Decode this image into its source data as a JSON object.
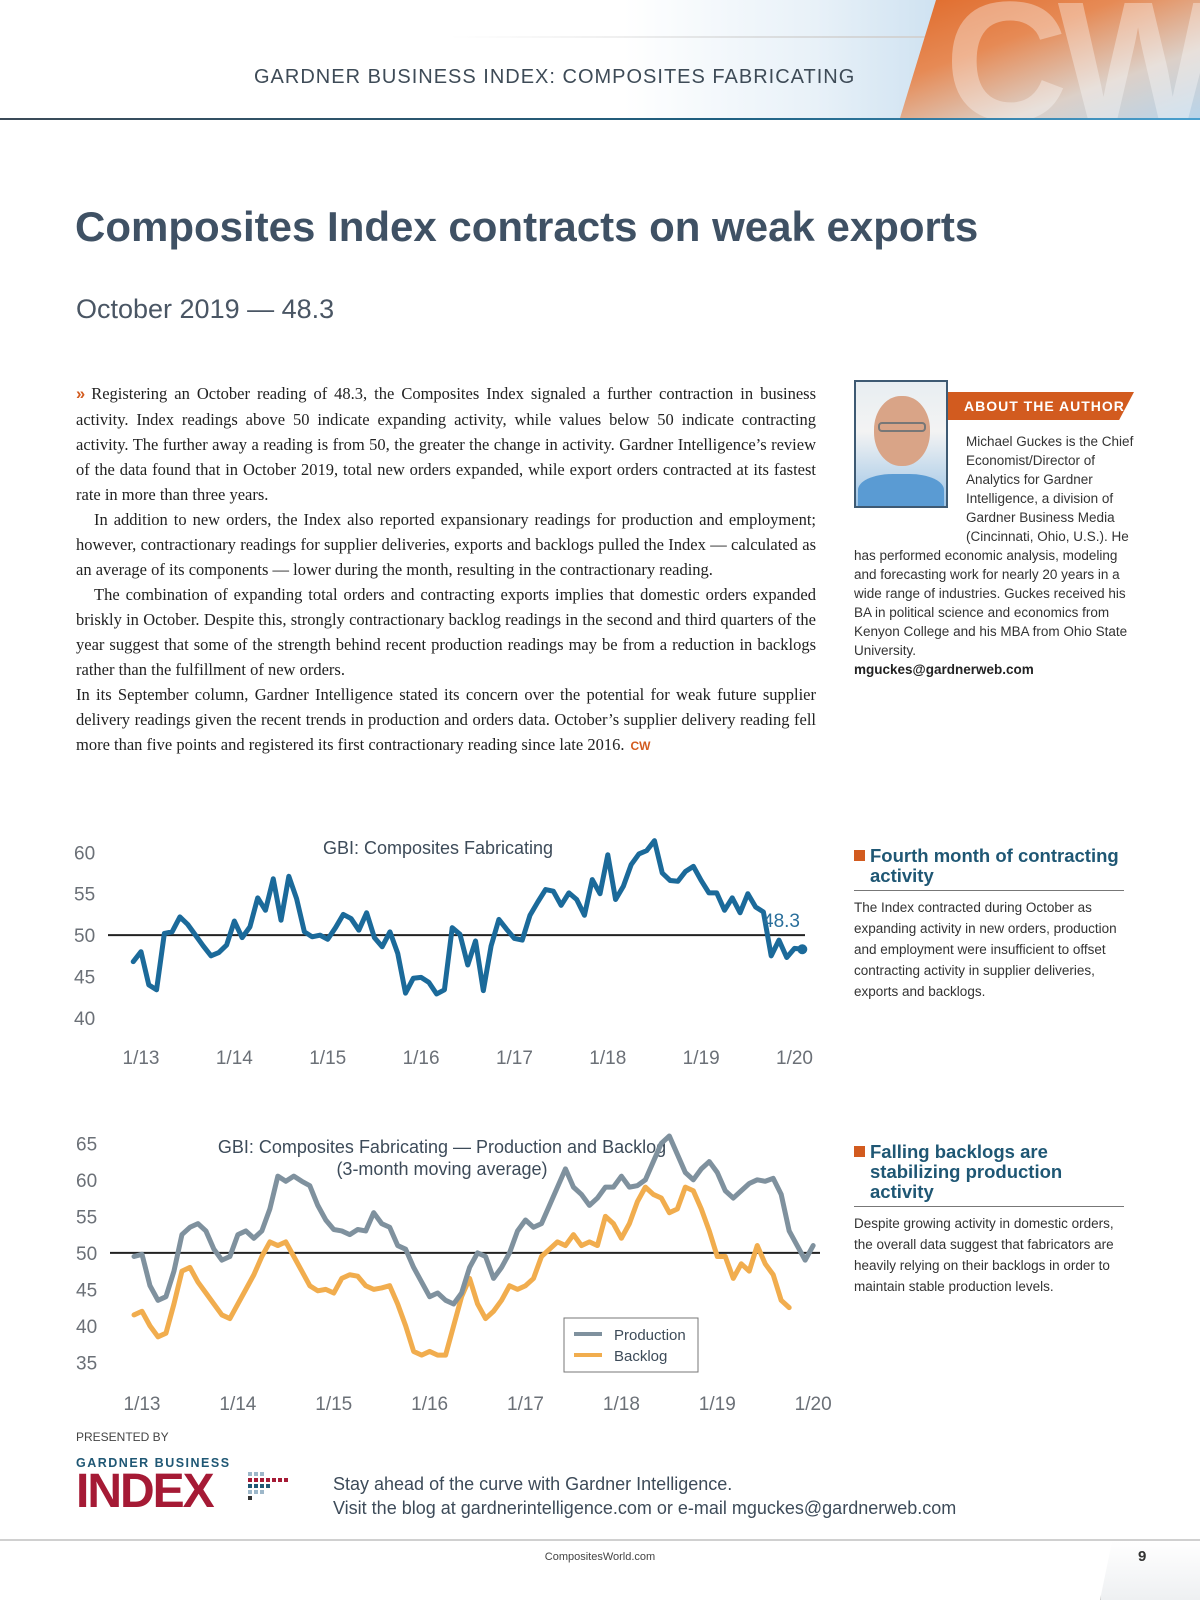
{
  "header": {
    "section_title": "GARDNER BUSINESS INDEX: COMPOSITES FABRICATING",
    "logo": "CW"
  },
  "article": {
    "title": "Composites Index contracts on weak exports",
    "subtitle": "October 2019 — 48.3",
    "lead_icon": "»",
    "paragraphs": [
      "Registering an October reading of 48.3, the Composites Index signaled a further contraction in business activity. Index readings above 50 indicate expanding activity, while values below 50 indicate contracting activity. The further away a reading is from 50, the greater the change in activity. Gardner Intelligence’s review of the data found that in October 2019, total new orders expanded, while export orders contracted at its fastest rate in more than three years.",
      "In addition to new orders, the Index also reported expansionary readings for production and employment; however, contractionary readings for supplier deliveries, exports and backlogs pulled the Index — calculated as an average of its components — lower during the month, resulting in the contractionary reading.",
      "The combination of expanding total orders and contracting exports implies that domestic orders expanded briskly in October. Despite this, strongly contractionary backlog readings in the second and third quarters of the year suggest that some of the strength behind recent produc­tion readings may be from a reduction in backlogs rather than the fulfillment of new orders.",
      "In its September column, Gardner Intelligence stated its concern over the potential for weak future supplier delivery readings given the recent trends in production and orders data. Octo­ber’s supplier delivery reading fell more than five points and registered its first contractionary reading since late 2016."
    ],
    "end_mark": "CW"
  },
  "author": {
    "tag": "ABOUT THE AUTHOR",
    "bio": "Michael Guckes is the Chief Economist/Director of Analytics for Gardner Intelligence, a division of Gardner Business Media (Cincinnati, Ohio, U.S.). He has performed economic analysis, modeling and forecasting work for nearly 20 years in a wide range of industries. Guckes received his BA in political science and economics from Kenyon College and his MBA from Ohio State University.",
    "email": "mguckes@gardnerweb.com"
  },
  "sidebars": [
    {
      "heading": "Fourth month of contracting activity",
      "body": "The Index contracted during October as expanding activity in new orders, produc­tion and employment were insufficient to offset contracting activity in supplier deliveries, exports and backlogs."
    },
    {
      "heading": "Falling backlogs are stabilizing production activity",
      "body": "Despite growing activity in domestic orders, the overall data suggest that fabricators are heavily relying on their backlogs in order to maintain stable production levels."
    }
  ],
  "colors": {
    "accent_orange": "#d25b1f",
    "index_line": "#1b6a9a",
    "production_line": "#7f919e",
    "backlog_line": "#f1ad4e",
    "reference_line": "#222222"
  },
  "chart_data": [
    {
      "type": "line",
      "title": "GBI: Composites Fabricating",
      "xlabel": "",
      "ylabel": "",
      "x_ticks": [
        "1/13",
        "1/14",
        "1/15",
        "1/16",
        "1/17",
        "1/18",
        "1/19",
        "1/20"
      ],
      "y_ticks": [
        40,
        45,
        50,
        55,
        60
      ],
      "ylim": [
        40,
        61
      ],
      "x_start": "12/12",
      "x_end": "10/19",
      "reference_line": 50,
      "annotation": "48.3",
      "grid": false,
      "series": [
        {
          "name": "Composites Index",
          "values": [
            46.8,
            48.0,
            44.0,
            43.4,
            50.2,
            50.4,
            52.2,
            51.3,
            50.0,
            48.7,
            47.5,
            47.9,
            48.8,
            51.7,
            49.7,
            51.0,
            54.5,
            53.0,
            56.8,
            51.8,
            57.1,
            54.4,
            50.4,
            49.8,
            50.0,
            49.5,
            50.9,
            52.5,
            52.0,
            50.6,
            52.7,
            49.7,
            48.6,
            50.4,
            47.8,
            43.0,
            44.8,
            44.9,
            44.3,
            42.9,
            43.4,
            50.9,
            50.1,
            46.4,
            49.3,
            43.3,
            48.7,
            51.9,
            50.7,
            49.6,
            49.4,
            52.4,
            54.0,
            55.5,
            55.3,
            53.6,
            55.1,
            54.3,
            52.4,
            56.7,
            55.0,
            59.7,
            54.3,
            55.9,
            58.5,
            59.8,
            60.2,
            61.4,
            57.5,
            56.6,
            56.5,
            57.7,
            58.3,
            56.6,
            55.1,
            55.1,
            53.0,
            54.5,
            52.7,
            55.0,
            53.4,
            52.8,
            47.5,
            49.4,
            47.3,
            48.4,
            48.3
          ]
        }
      ]
    },
    {
      "type": "line",
      "title": "GBI: Composites Fabricating — Production and Backlog",
      "subtitle": "(3-month moving average)",
      "xlabel": "",
      "ylabel": "",
      "x_ticks": [
        "1/13",
        "1/14",
        "1/15",
        "1/16",
        "1/17",
        "1/18",
        "1/19",
        "1/20"
      ],
      "y_ticks": [
        35,
        40,
        45,
        50,
        55,
        60,
        65
      ],
      "ylim": [
        33,
        66
      ],
      "x_start": "12/12",
      "x_end": "10/19",
      "reference_line": 50,
      "legend": "bottom-right",
      "grid": false,
      "series": [
        {
          "name": "Production",
          "values": [
            49.5,
            49.8,
            45.5,
            43.5,
            44.0,
            47.5,
            52.5,
            53.5,
            54.0,
            53.0,
            50.5,
            49.0,
            49.5,
            52.5,
            53.0,
            52.0,
            53.0,
            56.0,
            60.5,
            59.8,
            60.5,
            59.8,
            59.2,
            56.5,
            54.5,
            53.2,
            53.0,
            52.5,
            53.2,
            53.0,
            55.5,
            54.0,
            53.5,
            51.0,
            50.5,
            48.0,
            46.0,
            44.0,
            44.5,
            43.5,
            43.0,
            44.5,
            48.0,
            50.0,
            49.5,
            46.5,
            48.0,
            50.0,
            53.0,
            54.5,
            53.5,
            54.0,
            56.5,
            59.0,
            61.5,
            59.0,
            58.0,
            56.5,
            57.5,
            59.0,
            59.0,
            60.5,
            59.0,
            59.2,
            60.0,
            62.5,
            65.0,
            66.0,
            63.5,
            61.0,
            60.0,
            61.5,
            62.5,
            61.0,
            58.5,
            57.5,
            58.5,
            59.5,
            60.0,
            59.8,
            60.2,
            58.0,
            53.0,
            51.0,
            49.0,
            51.0
          ]
        },
        {
          "name": "Backlog",
          "values": [
            41.5,
            42.0,
            40.0,
            38.5,
            39.0,
            43.0,
            47.5,
            48.0,
            46.0,
            44.5,
            43.0,
            41.5,
            41.0,
            43.0,
            45.0,
            47.0,
            49.5,
            51.5,
            51.0,
            51.5,
            49.5,
            47.5,
            45.5,
            44.8,
            45.0,
            44.5,
            46.5,
            47.0,
            46.8,
            45.5,
            45.0,
            45.2,
            45.5,
            43.0,
            40.0,
            36.5,
            36.0,
            36.5,
            36.0,
            36.0,
            40.0,
            44.0,
            46.5,
            43.0,
            41.0,
            42.0,
            43.5,
            45.5,
            45.0,
            45.5,
            46.5,
            49.5,
            50.5,
            51.5,
            51.0,
            52.5,
            51.0,
            51.5,
            51.0,
            55.0,
            54.0,
            52.0,
            54.0,
            57.0,
            59.0,
            58.0,
            57.5,
            55.5,
            56.0,
            59.0,
            58.5,
            56.0,
            53.0,
            49.5,
            49.5,
            46.5,
            48.5,
            47.5,
            51.0,
            48.5,
            47.0,
            43.5,
            42.5
          ]
        }
      ]
    }
  ],
  "footer": {
    "presented_by": "PRESENTED BY",
    "logo_small": "GARDNER BUSINESS",
    "logo_big": "INDEX",
    "cta_line1": "Stay ahead of the curve with Gardner Intelligence.",
    "cta_line2": "Visit the blog at gardnerintelligence.com or e-mail mguckes@gardnerweb.com",
    "site": "CompositesWorld.com",
    "page_number": "9"
  }
}
